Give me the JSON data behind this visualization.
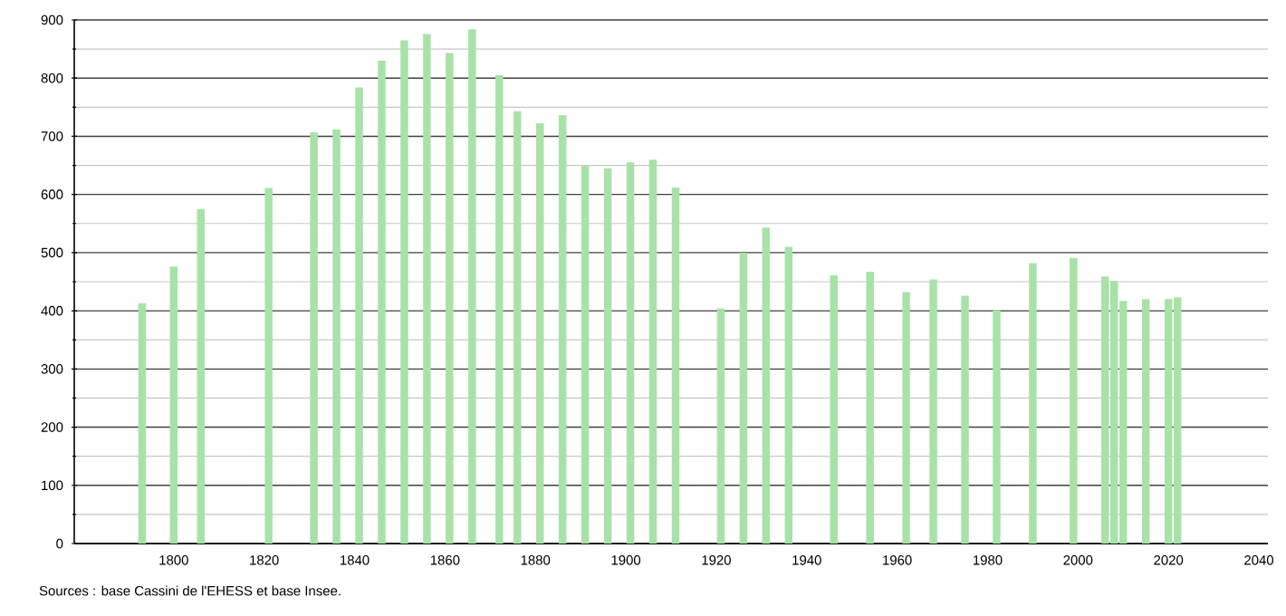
{
  "chart_data": {
    "type": "bar",
    "x": [
      1793,
      1800,
      1806,
      1821,
      1831,
      1836,
      1841,
      1846,
      1851,
      1856,
      1861,
      1866,
      1872,
      1876,
      1881,
      1886,
      1891,
      1896,
      1901,
      1906,
      1911,
      1921,
      1926,
      1931,
      1936,
      1946,
      1954,
      1962,
      1968,
      1975,
      1982,
      1990,
      1999,
      2006,
      2008,
      2010,
      2015,
      2020,
      2022
    ],
    "values": [
      413,
      476,
      575,
      611,
      707,
      712,
      784,
      830,
      865,
      876,
      843,
      884,
      805,
      743,
      722,
      736,
      649,
      645,
      655,
      660,
      612,
      404,
      500,
      543,
      510,
      461,
      467,
      432,
      454,
      426,
      401,
      482,
      491,
      459,
      451,
      417,
      420,
      420,
      423
    ],
    "color": "#a8e2a8",
    "xlim": [
      1778,
      2042
    ],
    "xticks": [
      1800,
      1820,
      1840,
      1860,
      1880,
      1900,
      1920,
      1940,
      1960,
      1980,
      2000,
      2020,
      2040
    ],
    "ylim": [
      0,
      900
    ],
    "yticks": [
      0,
      100,
      200,
      300,
      400,
      500,
      600,
      700,
      800,
      900
    ],
    "grid": "y",
    "annotations": [
      "Sources : base Cassini de l'EHESS et base Insee."
    ]
  }
}
